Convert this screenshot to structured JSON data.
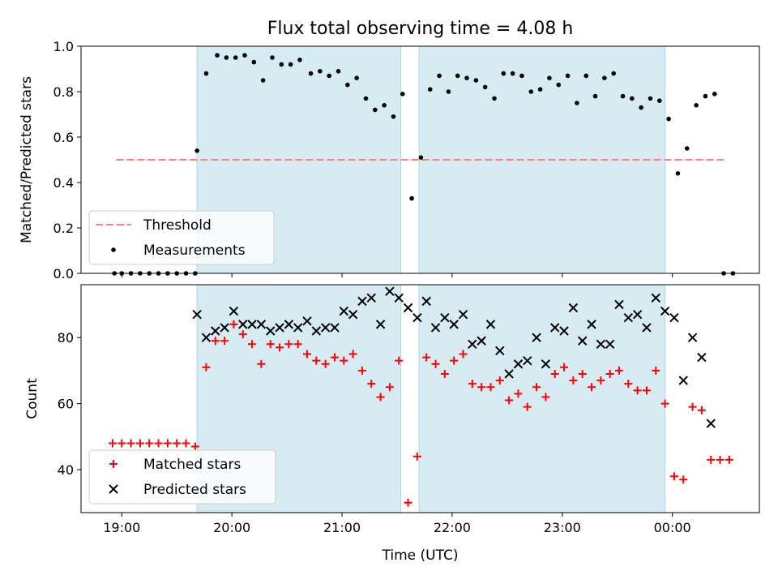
{
  "chart_data": [
    {
      "type": "scatter",
      "title": "Flux total observing time = 4.08 h",
      "xlabel": "",
      "ylabel": "Matched/Predicted stars",
      "ylim": [
        0,
        1.0
      ],
      "yticks": [
        "0.0",
        "0.2",
        "0.4",
        "0.6",
        "0.8",
        "1.0"
      ],
      "xlim_hours": [
        18.63,
        24.79
      ],
      "observing_windows": [
        [
          "19:41",
          "21:32"
        ],
        [
          "21:42",
          "23:56"
        ]
      ],
      "threshold": {
        "name": "Threshold",
        "value": 0.5,
        "from": "18:57",
        "to": "00:28",
        "color": "#ff7f7f"
      },
      "legend": {
        "position": "lower left",
        "entries": [
          "Threshold",
          "Measurements"
        ]
      },
      "series": [
        {
          "name": "Measurements",
          "marker": "dot",
          "color": "#000000",
          "points": [
            [
              "18:56",
              0.0
            ],
            [
              "19:00",
              0.0
            ],
            [
              "19:05",
              0.0
            ],
            [
              "19:10",
              0.0
            ],
            [
              "19:15",
              0.0
            ],
            [
              "19:20",
              0.0
            ],
            [
              "19:25",
              0.0
            ],
            [
              "19:30",
              0.0
            ],
            [
              "19:35",
              0.0
            ],
            [
              "19:40",
              0.0
            ],
            [
              "19:41",
              0.54
            ],
            [
              "19:46",
              0.88
            ],
            [
              "19:52",
              0.96
            ],
            [
              "19:57",
              0.95
            ],
            [
              "20:02",
              0.95
            ],
            [
              "20:07",
              0.96
            ],
            [
              "20:12",
              0.93
            ],
            [
              "20:17",
              0.85
            ],
            [
              "20:22",
              0.95
            ],
            [
              "20:27",
              0.92
            ],
            [
              "20:32",
              0.92
            ],
            [
              "20:37",
              0.94
            ],
            [
              "20:43",
              0.88
            ],
            [
              "20:48",
              0.89
            ],
            [
              "20:53",
              0.87
            ],
            [
              "20:58",
              0.89
            ],
            [
              "21:03",
              0.83
            ],
            [
              "21:08",
              0.86
            ],
            [
              "21:13",
              0.77
            ],
            [
              "21:18",
              0.72
            ],
            [
              "21:23",
              0.74
            ],
            [
              "21:28",
              0.69
            ],
            [
              "21:33",
              0.79
            ],
            [
              "21:38",
              0.33
            ],
            [
              "21:43",
              0.51
            ],
            [
              "21:48",
              0.81
            ],
            [
              "21:53",
              0.87
            ],
            [
              "21:58",
              0.8
            ],
            [
              "22:03",
              0.87
            ],
            [
              "22:08",
              0.86
            ],
            [
              "22:13",
              0.85
            ],
            [
              "22:18",
              0.82
            ],
            [
              "22:23",
              0.77
            ],
            [
              "22:28",
              0.88
            ],
            [
              "22:33",
              0.88
            ],
            [
              "22:38",
              0.87
            ],
            [
              "22:43",
              0.8
            ],
            [
              "22:48",
              0.81
            ],
            [
              "22:53",
              0.86
            ],
            [
              "22:58",
              0.83
            ],
            [
              "23:03",
              0.87
            ],
            [
              "23:08",
              0.75
            ],
            [
              "23:13",
              0.87
            ],
            [
              "23:18",
              0.78
            ],
            [
              "23:23",
              0.86
            ],
            [
              "23:28",
              0.88
            ],
            [
              "23:33",
              0.78
            ],
            [
              "23:38",
              0.77
            ],
            [
              "23:43",
              0.73
            ],
            [
              "23:48",
              0.77
            ],
            [
              "23:53",
              0.76
            ],
            [
              "23:58",
              0.68
            ],
            [
              "00:03",
              0.44
            ],
            [
              "00:08",
              0.55
            ],
            [
              "00:13",
              0.74
            ],
            [
              "00:18",
              0.78
            ],
            [
              "00:23",
              0.79
            ],
            [
              "00:28",
              0.0
            ],
            [
              "00:33",
              0.0
            ]
          ]
        }
      ]
    },
    {
      "type": "scatter",
      "title": "",
      "xlabel": "Time (UTC)",
      "ylabel": "Count",
      "ylim": [
        27,
        96
      ],
      "yticks": [
        "40",
        "60",
        "80"
      ],
      "xticks": [
        "19:00",
        "20:00",
        "21:00",
        "22:00",
        "23:00",
        "00:00"
      ],
      "xlim_hours": [
        18.63,
        24.79
      ],
      "observing_windows": [
        [
          "19:41",
          "21:32"
        ],
        [
          "21:42",
          "23:56"
        ]
      ],
      "legend": {
        "position": "lower left",
        "entries": [
          "Matched stars",
          "Predicted stars"
        ]
      },
      "series": [
        {
          "name": "Matched stars",
          "marker": "plus",
          "color": "#ff0000",
          "points": [
            [
              "18:55",
              48
            ],
            [
              "19:00",
              48
            ],
            [
              "19:05",
              48
            ],
            [
              "19:10",
              48
            ],
            [
              "19:15",
              48
            ],
            [
              "19:20",
              48
            ],
            [
              "19:25",
              48
            ],
            [
              "19:30",
              48
            ],
            [
              "19:35",
              48
            ],
            [
              "19:40",
              47
            ],
            [
              "19:46",
              71
            ],
            [
              "19:51",
              79
            ],
            [
              "19:56",
              79
            ],
            [
              "20:01",
              84
            ],
            [
              "20:06",
              81
            ],
            [
              "20:11",
              78
            ],
            [
              "20:16",
              72
            ],
            [
              "20:21",
              78
            ],
            [
              "20:26",
              77
            ],
            [
              "20:31",
              78
            ],
            [
              "20:36",
              78
            ],
            [
              "20:41",
              75
            ],
            [
              "20:46",
              73
            ],
            [
              "20:51",
              72
            ],
            [
              "20:56",
              74
            ],
            [
              "21:01",
              73
            ],
            [
              "21:06",
              75
            ],
            [
              "21:11",
              70
            ],
            [
              "21:16",
              66
            ],
            [
              "21:21",
              62
            ],
            [
              "21:26",
              65
            ],
            [
              "21:31",
              73
            ],
            [
              "21:36",
              30
            ],
            [
              "21:41",
              44
            ],
            [
              "21:46",
              74
            ],
            [
              "21:51",
              72
            ],
            [
              "21:56",
              69
            ],
            [
              "22:01",
              73
            ],
            [
              "22:06",
              75
            ],
            [
              "22:11",
              66
            ],
            [
              "22:16",
              65
            ],
            [
              "22:21",
              65
            ],
            [
              "22:26",
              67
            ],
            [
              "22:31",
              61
            ],
            [
              "22:36",
              63
            ],
            [
              "22:41",
              59
            ],
            [
              "22:46",
              65
            ],
            [
              "22:51",
              62
            ],
            [
              "22:56",
              69
            ],
            [
              "23:01",
              71
            ],
            [
              "23:06",
              67
            ],
            [
              "23:11",
              69
            ],
            [
              "23:16",
              65
            ],
            [
              "23:21",
              67
            ],
            [
              "23:26",
              69
            ],
            [
              "23:31",
              70
            ],
            [
              "23:36",
              66
            ],
            [
              "23:41",
              64
            ],
            [
              "23:46",
              64
            ],
            [
              "23:51",
              70
            ],
            [
              "23:56",
              60
            ],
            [
              "00:01",
              38
            ],
            [
              "00:06",
              37
            ],
            [
              "00:11",
              59
            ],
            [
              "00:16",
              58
            ],
            [
              "00:21",
              43
            ],
            [
              "00:26",
              43
            ],
            [
              "00:31",
              43
            ]
          ]
        },
        {
          "name": "Predicted stars",
          "marker": "x",
          "color": "#000000",
          "points": [
            [
              "19:41",
              87
            ],
            [
              "19:46",
              80
            ],
            [
              "19:51",
              82
            ],
            [
              "19:56",
              83
            ],
            [
              "20:01",
              88
            ],
            [
              "20:06",
              84
            ],
            [
              "20:11",
              84
            ],
            [
              "20:16",
              84
            ],
            [
              "20:21",
              82
            ],
            [
              "20:26",
              83
            ],
            [
              "20:31",
              84
            ],
            [
              "20:36",
              83
            ],
            [
              "20:41",
              85
            ],
            [
              "20:46",
              82
            ],
            [
              "20:51",
              83
            ],
            [
              "20:56",
              83
            ],
            [
              "21:01",
              88
            ],
            [
              "21:06",
              87
            ],
            [
              "21:11",
              91
            ],
            [
              "21:16",
              92
            ],
            [
              "21:21",
              84
            ],
            [
              "21:26",
              94
            ],
            [
              "21:31",
              92
            ],
            [
              "21:36",
              89
            ],
            [
              "21:41",
              86
            ],
            [
              "21:46",
              91
            ],
            [
              "21:51",
              83
            ],
            [
              "21:56",
              86
            ],
            [
              "22:01",
              84
            ],
            [
              "22:06",
              87
            ],
            [
              "22:11",
              78
            ],
            [
              "22:16",
              79
            ],
            [
              "22:21",
              84
            ],
            [
              "22:26",
              76
            ],
            [
              "22:31",
              69
            ],
            [
              "22:36",
              72
            ],
            [
              "22:41",
              73
            ],
            [
              "22:46",
              80
            ],
            [
              "22:51",
              72
            ],
            [
              "22:56",
              83
            ],
            [
              "23:01",
              82
            ],
            [
              "23:06",
              89
            ],
            [
              "23:11",
              79
            ],
            [
              "23:16",
              84
            ],
            [
              "23:21",
              78
            ],
            [
              "23:26",
              78
            ],
            [
              "23:31",
              90
            ],
            [
              "23:36",
              86
            ],
            [
              "23:41",
              87
            ],
            [
              "23:46",
              83
            ],
            [
              "23:51",
              92
            ],
            [
              "23:56",
              88
            ],
            [
              "00:01",
              86
            ],
            [
              "00:06",
              67
            ],
            [
              "00:11",
              80
            ],
            [
              "00:16",
              74
            ],
            [
              "00:21",
              54
            ]
          ]
        }
      ]
    }
  ]
}
